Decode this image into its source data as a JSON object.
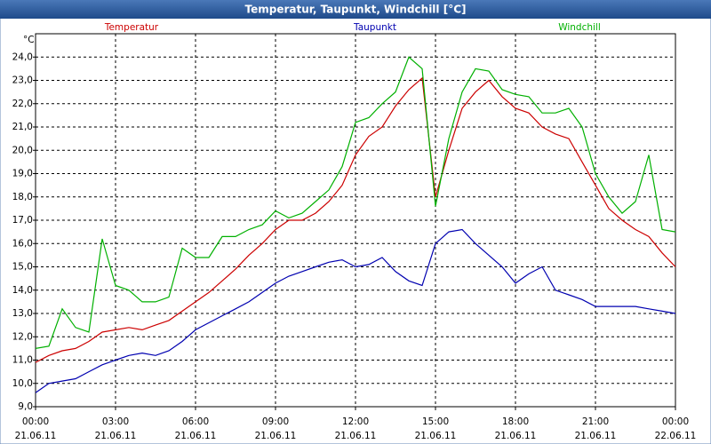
{
  "chart_data": {
    "type": "line",
    "title": "Temperatur, Taupunkt, Windchill [°C]",
    "y_unit": "°C",
    "x": [
      0,
      0.5,
      1,
      1.5,
      2,
      2.5,
      3,
      3.5,
      4,
      4.5,
      5,
      5.5,
      6,
      6.5,
      7,
      7.5,
      8,
      8.5,
      9,
      9.5,
      10,
      10.5,
      11,
      11.5,
      12,
      12.5,
      13,
      13.5,
      14,
      14.5,
      15,
      15.5,
      16,
      16.5,
      17,
      17.5,
      18,
      18.5,
      19,
      19.5,
      20,
      20.5,
      21,
      21.5,
      22,
      22.5,
      23,
      23.5,
      24
    ],
    "series": [
      {
        "name": "Temperatur",
        "color": "#cc0000",
        "values": [
          10.9,
          11.2,
          11.4,
          11.5,
          11.8,
          12.2,
          12.3,
          12.4,
          12.3,
          12.5,
          12.7,
          13.1,
          13.5,
          13.9,
          14.4,
          14.9,
          15.5,
          16.0,
          16.6,
          17.0,
          17.0,
          17.3,
          17.8,
          18.5,
          19.8,
          20.6,
          21.0,
          21.9,
          22.6,
          23.1,
          18.0,
          20.0,
          21.8,
          22.5,
          23.0,
          22.3,
          21.8,
          21.6,
          21.0,
          20.7,
          20.5,
          19.5,
          18.5,
          17.5,
          17.0,
          16.6,
          16.3,
          15.6,
          15.0
        ]
      },
      {
        "name": "Taupunkt",
        "color": "#0000b0",
        "values": [
          9.6,
          10.0,
          10.1,
          10.2,
          10.5,
          10.8,
          11.0,
          11.2,
          11.3,
          11.2,
          11.4,
          11.8,
          12.3,
          12.6,
          12.9,
          13.2,
          13.5,
          13.9,
          14.3,
          14.6,
          14.8,
          15.0,
          15.2,
          15.3,
          15.0,
          15.1,
          15.4,
          14.8,
          14.4,
          14.2,
          16.0,
          16.5,
          16.6,
          16.0,
          15.5,
          15.0,
          14.3,
          14.7,
          15.0,
          14.0,
          13.8,
          13.6,
          13.3,
          13.3,
          13.3,
          13.3,
          13.2,
          13.1,
          13.0
        ]
      },
      {
        "name": "Windchill",
        "color": "#00b000",
        "values": [
          11.5,
          11.6,
          13.2,
          12.4,
          12.2,
          16.2,
          14.2,
          14.0,
          13.5,
          13.5,
          13.7,
          15.8,
          15.4,
          15.4,
          16.3,
          16.3,
          16.6,
          16.8,
          17.4,
          17.1,
          17.3,
          17.8,
          18.3,
          19.3,
          21.2,
          21.4,
          22.0,
          22.5,
          24.0,
          23.5,
          17.6,
          20.5,
          22.5,
          23.5,
          23.4,
          22.6,
          22.4,
          22.3,
          21.6,
          21.6,
          21.8,
          21.0,
          19.0,
          18.0,
          17.3,
          17.8,
          19.8,
          16.6,
          16.5
        ]
      }
    ],
    "xlim": [
      0,
      24
    ],
    "xticks": [
      {
        "value": 0,
        "label": "00:00",
        "date": "21.06.11"
      },
      {
        "value": 3,
        "label": "03:00",
        "date": "21.06.11"
      },
      {
        "value": 6,
        "label": "06:00",
        "date": "21.06.11"
      },
      {
        "value": 9,
        "label": "09:00",
        "date": "21.06.11"
      },
      {
        "value": 12,
        "label": "12:00",
        "date": "21.06.11"
      },
      {
        "value": 15,
        "label": "15:00",
        "date": "21.06.11"
      },
      {
        "value": 18,
        "label": "18:00",
        "date": "21.06.11"
      },
      {
        "value": 21,
        "label": "21:00",
        "date": "21.06.11"
      },
      {
        "value": 24,
        "label": "00:00",
        "date": "22.06.11"
      }
    ],
    "ylim": [
      9,
      25
    ],
    "yticks": [
      {
        "value": 9,
        "label": "9,0"
      },
      {
        "value": 10,
        "label": "10,0"
      },
      {
        "value": 11,
        "label": "11,0"
      },
      {
        "value": 12,
        "label": "12,0"
      },
      {
        "value": 13,
        "label": "13,0"
      },
      {
        "value": 14,
        "label": "14,0"
      },
      {
        "value": 15,
        "label": "15,0"
      },
      {
        "value": 16,
        "label": "16,0"
      },
      {
        "value": 17,
        "label": "17,0"
      },
      {
        "value": 18,
        "label": "18,0"
      },
      {
        "value": 19,
        "label": "19,0"
      },
      {
        "value": 20,
        "label": "20,0"
      },
      {
        "value": 21,
        "label": "21,0"
      },
      {
        "value": 22,
        "label": "22,0"
      },
      {
        "value": 23,
        "label": "23,0"
      },
      {
        "value": 24,
        "label": "24,0"
      }
    ],
    "grid": true
  }
}
